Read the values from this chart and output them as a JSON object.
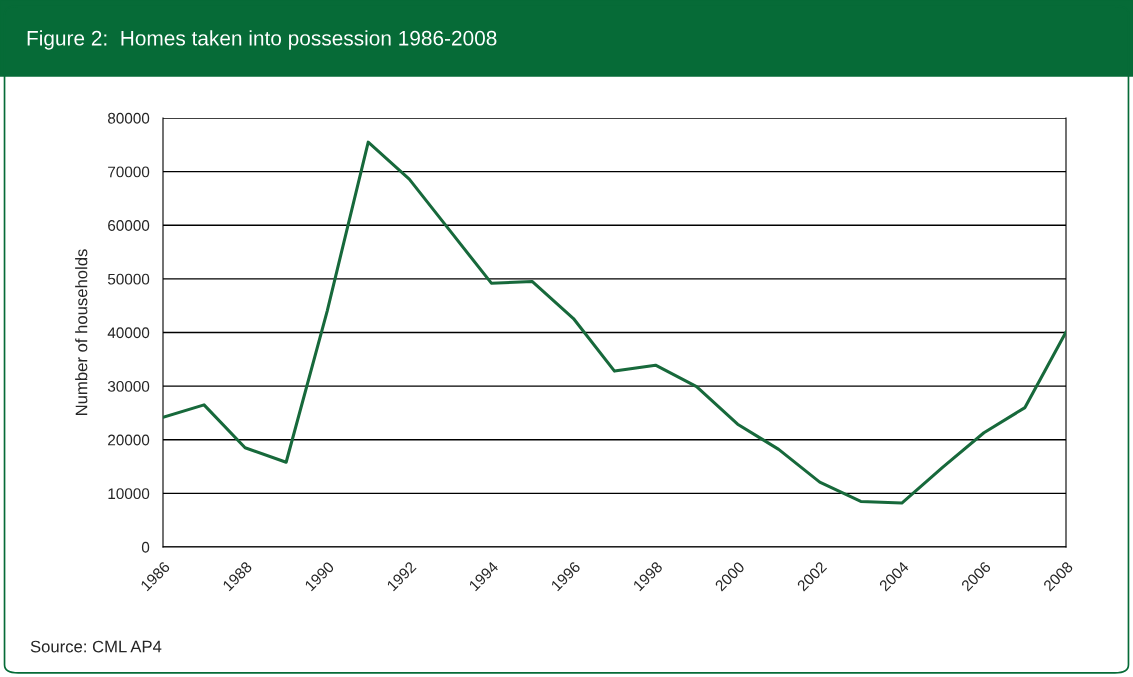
{
  "chart_data": {
    "type": "line",
    "title": "Figure 2:  Homes taken into possession 1986-2008",
    "ylabel": "Number of households",
    "categories": [
      "1986",
      null,
      "1988",
      null,
      "1990",
      null,
      "1992",
      null,
      "1994",
      null,
      "1996",
      null,
      "1998",
      null,
      "2000",
      null,
      "2002",
      null,
      "2004",
      null,
      "2006",
      null,
      "2008"
    ],
    "series": [
      {
        "color": "#17693b",
        "values": [
          24200,
          26500,
          18500,
          15800,
          44000,
          75500,
          68600,
          58900,
          49200,
          49500,
          42600,
          32800,
          33900,
          29900,
          22900,
          18200,
          12100,
          8500,
          8200,
          14900,
          21300,
          26000,
          40100
        ]
      }
    ],
    "ylim": [
      0,
      80000
    ],
    "yticks": [
      0,
      10000,
      20000,
      30000,
      40000,
      50000,
      60000,
      70000,
      80000
    ],
    "grid": "y",
    "marker": "none",
    "line_style": "solid",
    "annotations": [
      "Source: CML AP4"
    ]
  }
}
